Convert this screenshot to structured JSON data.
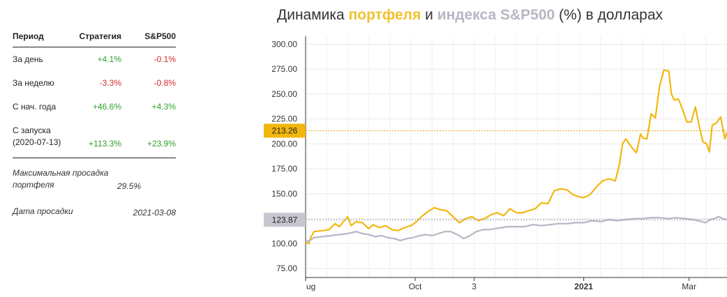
{
  "stats": {
    "headers": {
      "period": "Период",
      "strategy": "Стратегия",
      "sp500": "S&P500"
    },
    "rows": [
      {
        "period": "За день",
        "strategy": "+4.1%",
        "sp500": "-0.1%"
      },
      {
        "period": "За неделю",
        "strategy": "-3.3%",
        "sp500": "-0.8%"
      },
      {
        "period": "С нач. года",
        "strategy": "+46.6%",
        "sp500": "+4.3%"
      },
      {
        "period": "С запуска (2020-07-13)",
        "strategy": "+113.3%",
        "sp500": "+23.9%"
      }
    ],
    "max_drawdown_label": "Максимальная просадка портфеля",
    "max_drawdown_value": "29.5%",
    "drawdown_date_label": "Дата просадки",
    "drawdown_date_value": "2021-03-08"
  },
  "chart_title": {
    "prefix": "Динамика ",
    "series1": "портфеля",
    "middle": " и ",
    "series2": "индекса S&P500",
    "suffix": " (%) в долларах"
  },
  "colors": {
    "portfolio": "#f2b70f",
    "index": "#b7b6c3",
    "grid": "#e8e8e8",
    "axis": "#333333"
  },
  "chart_data": {
    "type": "line",
    "y_ticks": [
      "75.00",
      "100.00",
      "125.00",
      "150.00",
      "175.00",
      "200.00",
      "225.00",
      "250.00",
      "275.00",
      "300.00"
    ],
    "ylim": [
      66,
      308
    ],
    "x_ticks": [
      {
        "label": "ug",
        "x": 0,
        "bold": false
      },
      {
        "label": "Oct",
        "x": 0.26,
        "bold": false
      },
      {
        "label": "3",
        "x": 0.4,
        "bold": false
      },
      {
        "label": "2021",
        "x": 0.66,
        "bold": true
      },
      {
        "label": "Mar",
        "x": 0.91,
        "bold": false
      }
    ],
    "last_values": {
      "portfolio": "213.26",
      "index": "123.87"
    },
    "series": [
      {
        "name": "портфеля",
        "color": "#f2b70f",
        "points": [
          [
            0.0,
            101
          ],
          [
            0.008,
            100
          ],
          [
            0.012,
            106
          ],
          [
            0.02,
            112
          ],
          [
            0.04,
            113
          ],
          [
            0.055,
            114
          ],
          [
            0.07,
            120
          ],
          [
            0.08,
            117
          ],
          [
            0.09,
            122
          ],
          [
            0.1,
            127
          ],
          [
            0.108,
            118
          ],
          [
            0.12,
            122
          ],
          [
            0.135,
            121
          ],
          [
            0.15,
            115
          ],
          [
            0.16,
            119
          ],
          [
            0.175,
            116
          ],
          [
            0.19,
            118
          ],
          [
            0.205,
            114
          ],
          [
            0.22,
            113
          ],
          [
            0.235,
            116
          ],
          [
            0.25,
            118
          ],
          [
            0.26,
            121
          ],
          [
            0.275,
            127
          ],
          [
            0.29,
            132
          ],
          [
            0.305,
            136
          ],
          [
            0.32,
            134
          ],
          [
            0.335,
            133
          ],
          [
            0.35,
            127
          ],
          [
            0.365,
            121
          ],
          [
            0.38,
            125
          ],
          [
            0.395,
            127
          ],
          [
            0.41,
            123
          ],
          [
            0.425,
            125
          ],
          [
            0.44,
            129
          ],
          [
            0.455,
            131
          ],
          [
            0.47,
            128
          ],
          [
            0.485,
            135
          ],
          [
            0.5,
            131
          ],
          [
            0.515,
            131
          ],
          [
            0.53,
            133
          ],
          [
            0.545,
            135
          ],
          [
            0.56,
            141
          ],
          [
            0.575,
            140
          ],
          [
            0.59,
            153
          ],
          [
            0.605,
            155
          ],
          [
            0.62,
            154
          ],
          [
            0.635,
            149
          ],
          [
            0.648,
            147
          ],
          [
            0.66,
            146
          ],
          [
            0.675,
            149
          ],
          [
            0.69,
            157
          ],
          [
            0.705,
            163
          ],
          [
            0.72,
            165
          ],
          [
            0.735,
            163
          ],
          [
            0.745,
            180
          ],
          [
            0.752,
            200
          ],
          [
            0.76,
            205
          ],
          [
            0.775,
            196
          ],
          [
            0.785,
            191
          ],
          [
            0.795,
            210
          ],
          [
            0.8,
            206
          ],
          [
            0.81,
            205
          ],
          [
            0.82,
            230
          ],
          [
            0.83,
            226
          ],
          [
            0.84,
            258
          ],
          [
            0.85,
            274
          ],
          [
            0.862,
            273
          ],
          [
            0.868,
            250
          ],
          [
            0.875,
            244
          ],
          [
            0.885,
            245
          ],
          [
            0.895,
            234
          ],
          [
            0.905,
            222
          ],
          [
            0.915,
            222
          ],
          [
            0.925,
            237
          ],
          [
            0.935,
            216
          ],
          [
            0.943,
            202
          ],
          [
            0.952,
            200
          ],
          [
            0.958,
            192
          ],
          [
            0.965,
            219
          ],
          [
            0.975,
            221
          ],
          [
            0.985,
            227
          ],
          [
            0.99,
            216
          ],
          [
            0.995,
            205
          ],
          [
            1.0,
            212
          ]
        ]
      },
      {
        "name": "индекса S&P500",
        "color": "#b7b6c3",
        "points": [
          [
            0.0,
            102
          ],
          [
            0.01,
            103
          ],
          [
            0.02,
            106
          ],
          [
            0.04,
            107
          ],
          [
            0.06,
            108
          ],
          [
            0.08,
            109
          ],
          [
            0.1,
            110
          ],
          [
            0.12,
            112
          ],
          [
            0.135,
            110
          ],
          [
            0.15,
            109
          ],
          [
            0.165,
            107
          ],
          [
            0.18,
            108
          ],
          [
            0.195,
            106
          ],
          [
            0.21,
            105
          ],
          [
            0.225,
            103
          ],
          [
            0.24,
            105
          ],
          [
            0.255,
            106
          ],
          [
            0.27,
            108
          ],
          [
            0.285,
            109
          ],
          [
            0.3,
            108
          ],
          [
            0.315,
            110
          ],
          [
            0.33,
            112
          ],
          [
            0.345,
            112
          ],
          [
            0.36,
            109
          ],
          [
            0.375,
            105
          ],
          [
            0.39,
            108
          ],
          [
            0.405,
            112
          ],
          [
            0.42,
            114
          ],
          [
            0.435,
            114
          ],
          [
            0.45,
            115
          ],
          [
            0.465,
            116
          ],
          [
            0.48,
            117
          ],
          [
            0.5,
            117
          ],
          [
            0.52,
            117
          ],
          [
            0.54,
            119
          ],
          [
            0.56,
            118
          ],
          [
            0.58,
            119
          ],
          [
            0.6,
            120
          ],
          [
            0.62,
            120
          ],
          [
            0.64,
            121
          ],
          [
            0.66,
            121
          ],
          [
            0.68,
            123
          ],
          [
            0.7,
            122
          ],
          [
            0.72,
            124
          ],
          [
            0.74,
            123
          ],
          [
            0.76,
            124
          ],
          [
            0.78,
            125
          ],
          [
            0.8,
            125
          ],
          [
            0.82,
            126
          ],
          [
            0.84,
            126
          ],
          [
            0.86,
            125
          ],
          [
            0.88,
            126
          ],
          [
            0.9,
            125
          ],
          [
            0.92,
            124
          ],
          [
            0.94,
            122
          ],
          [
            0.95,
            121
          ],
          [
            0.96,
            124
          ],
          [
            0.97,
            125
          ],
          [
            0.98,
            127
          ],
          [
            0.99,
            125
          ],
          [
            1.0,
            124
          ]
        ]
      }
    ]
  }
}
